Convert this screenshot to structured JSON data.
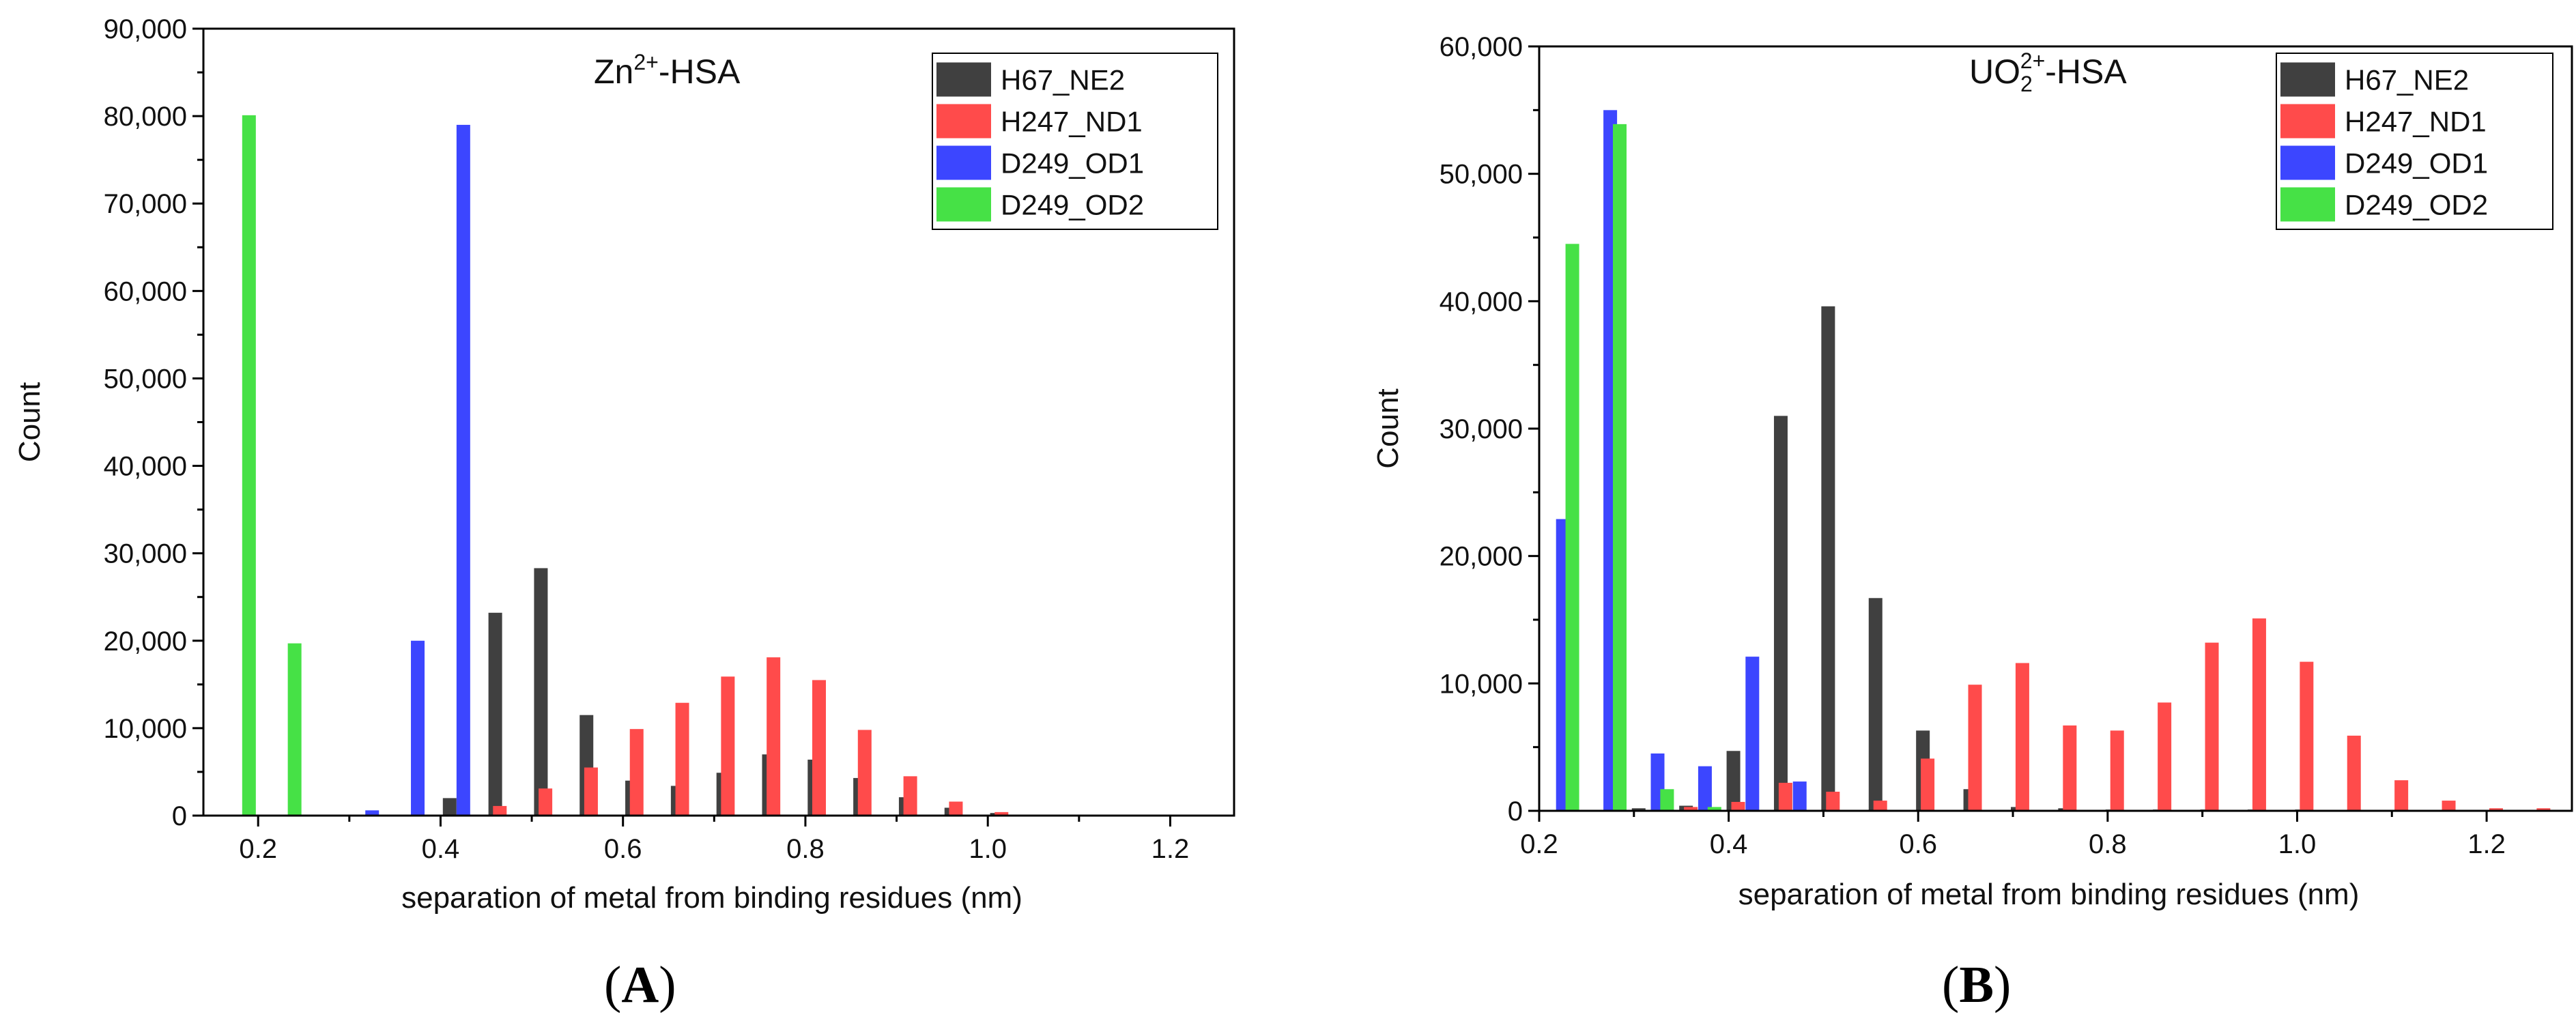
{
  "chart_data": [
    {
      "type": "bar",
      "panel_label": "A",
      "title": "Zn2+-HSA",
      "title_parts": {
        "base": "Zn",
        "sup": "2+",
        "suffix": "-HSA"
      },
      "xlabel": "separation of metal from binding residues (nm)",
      "ylabel": "Count",
      "xlim": [
        0.14,
        1.27
      ],
      "ylim": [
        0,
        90000
      ],
      "x_ticks": [
        0.2,
        0.4,
        0.6,
        0.8,
        1.0,
        1.2
      ],
      "x_tick_labels": [
        "0.2",
        "0.4",
        "0.6",
        "0.8",
        "1.0",
        "1.2"
      ],
      "y_ticks": [
        0,
        10000,
        20000,
        30000,
        40000,
        50000,
        60000,
        70000,
        80000,
        90000
      ],
      "y_tick_labels": [
        "0",
        "10,000",
        "20,000",
        "30,000",
        "40,000",
        "50,000",
        "60,000",
        "70,000",
        "80,000",
        "90,000"
      ],
      "legend_position": "top-right",
      "series": [
        {
          "name": "H67_NE2",
          "color": "#404040",
          "x": [
            0.41,
            0.46,
            0.51,
            0.56,
            0.61,
            0.66,
            0.71,
            0.76,
            0.81,
            0.86,
            0.91,
            0.96,
            1.01
          ],
          "values": [
            2000,
            23200,
            28300,
            11500,
            4000,
            3400,
            4900,
            7000,
            6400,
            4300,
            2100,
            900,
            300
          ]
        },
        {
          "name": "H247_ND1",
          "color": "#ff4b4b",
          "x": [
            0.465,
            0.515,
            0.565,
            0.615,
            0.665,
            0.715,
            0.765,
            0.815,
            0.865,
            0.915,
            0.965,
            1.015
          ],
          "values": [
            1100,
            3100,
            5500,
            9900,
            12900,
            15900,
            18100,
            15500,
            9800,
            4500,
            1600,
            400
          ]
        },
        {
          "name": "D249_OD1",
          "color": "#3c46ff",
          "x": [
            0.325,
            0.375,
            0.425
          ],
          "values": [
            600,
            20000,
            79000
          ]
        },
        {
          "name": "D249_OD2",
          "color": "#46e146",
          "x": [
            0.19,
            0.24
          ],
          "values": [
            80100,
            19700
          ]
        }
      ]
    },
    {
      "type": "bar",
      "panel_label": "B",
      "title": "UO22+-HSA",
      "title_parts": {
        "base": "UO",
        "sub": "2",
        "sup": "2+",
        "suffix": "-HSA"
      },
      "xlabel": "separation of metal from binding residues (nm)",
      "ylabel": "Count",
      "xlim": [
        0.2,
        1.29
      ],
      "ylim": [
        0,
        60000
      ],
      "x_ticks": [
        0.2,
        0.4,
        0.6,
        0.8,
        1.0,
        1.2
      ],
      "x_tick_labels": [
        "0.2",
        "0.4",
        "0.6",
        "0.8",
        "1.0",
        "1.2"
      ],
      "y_ticks": [
        0,
        10000,
        20000,
        30000,
        40000,
        50000,
        60000
      ],
      "y_tick_labels": [
        "0",
        "10,000",
        "20,000",
        "30,000",
        "40,000",
        "50,000",
        "60,000"
      ],
      "legend_position": "top-right",
      "series": [
        {
          "name": "H67_NE2",
          "color": "#404040",
          "x": [
            0.305,
            0.355,
            0.405,
            0.455,
            0.505,
            0.555,
            0.605,
            0.655,
            0.705,
            0.755,
            0.805,
            0.855,
            0.905,
            0.955,
            1.005
          ],
          "values": [
            200,
            400,
            4700,
            31000,
            39600,
            16700,
            6300,
            1700,
            300,
            200,
            100,
            100,
            100,
            100,
            100
          ]
        },
        {
          "name": "H247_ND1",
          "color": "#ff4b4b",
          "x": [
            0.36,
            0.41,
            0.46,
            0.51,
            0.56,
            0.61,
            0.66,
            0.71,
            0.76,
            0.81,
            0.86,
            0.91,
            0.96,
            1.01,
            1.06,
            1.11,
            1.16,
            1.21,
            1.26
          ],
          "values": [
            300,
            700,
            2200,
            1500,
            800,
            4100,
            9900,
            11600,
            6700,
            6300,
            8500,
            13200,
            15100,
            11700,
            5900,
            2400,
            800,
            200,
            200
          ]
        },
        {
          "name": "D249_OD1",
          "color": "#3c46ff",
          "x": [
            0.225,
            0.275,
            0.325,
            0.375,
            0.425,
            0.475
          ],
          "values": [
            22900,
            55000,
            4500,
            3500,
            12100,
            2300
          ]
        },
        {
          "name": "D249_OD2",
          "color": "#46e146",
          "x": [
            0.235,
            0.285,
            0.335,
            0.385
          ],
          "values": [
            44500,
            53900,
            1700,
            300
          ]
        }
      ]
    }
  ]
}
